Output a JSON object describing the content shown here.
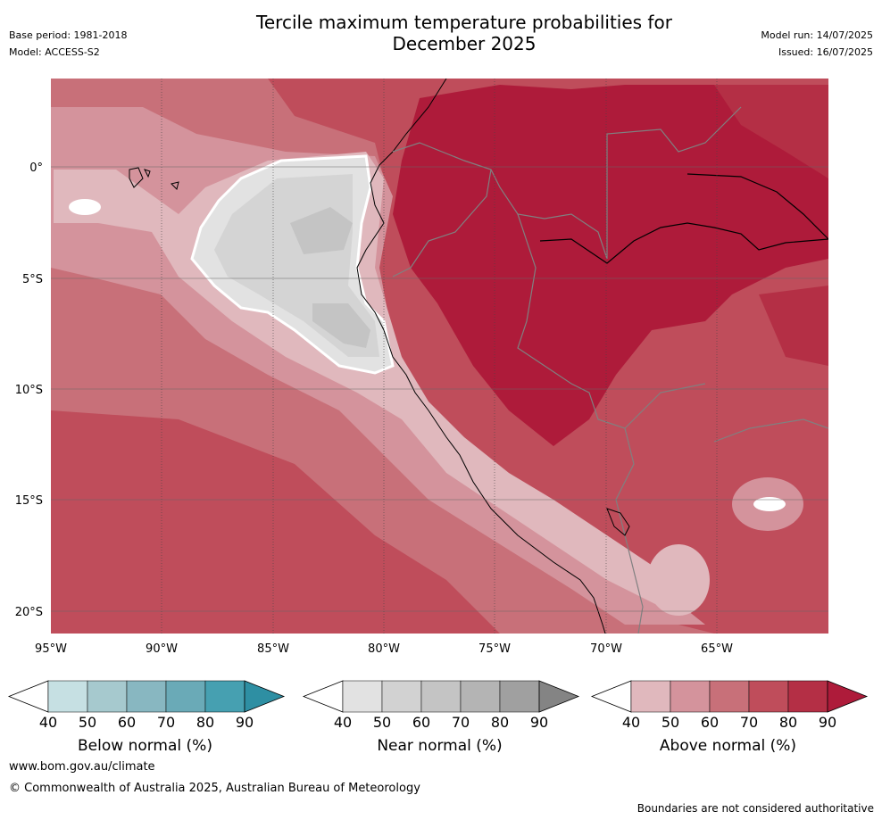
{
  "header": {
    "title_line1": "Tercile maximum temperature probabilities for",
    "title_line2": "December 2025",
    "base_period": "Base period: 1981-2018",
    "model": "Model: ACCESS-S2",
    "model_run": "Model run: 14/07/2025",
    "issued": "Issued: 16/07/2025"
  },
  "map": {
    "x_ticks": [
      "95°W",
      "90°W",
      "85°W",
      "80°W",
      "75°W",
      "70°W",
      "65°W"
    ],
    "y_ticks": [
      "0°",
      "5°S",
      "10°S",
      "15°S",
      "20°S"
    ],
    "colors": {
      "above_40_50": "#e0b8bd",
      "above_50_60": "#d4939c",
      "above_60_70": "#c87079",
      "above_70_80": "#bf4d5b",
      "above_80_90": "#b42f45",
      "above_90": "#ae1b3a",
      "near_40_50": "#e2e2e2",
      "near_50_60": "#d4d4d4",
      "near_60_70": "#c4c4c4"
    }
  },
  "legends": [
    {
      "label": "Below normal (%)",
      "ticks": [
        "40",
        "50",
        "60",
        "70",
        "80",
        "90"
      ],
      "colors": [
        "#ffffff",
        "#c6e0e3",
        "#a6c9ce",
        "#88b7c1",
        "#6aaab7",
        "#46a0b1",
        "#2e8fa3"
      ]
    },
    {
      "label": "Near normal (%)",
      "ticks": [
        "40",
        "50",
        "60",
        "70",
        "80",
        "90"
      ],
      "colors": [
        "#ffffff",
        "#e2e2e2",
        "#d2d2d2",
        "#c4c4c4",
        "#b4b4b4",
        "#a0a0a0",
        "#848484"
      ]
    },
    {
      "label": "Above normal (%)",
      "ticks": [
        "40",
        "50",
        "60",
        "70",
        "80",
        "90"
      ],
      "colors": [
        "#ffffff",
        "#e0b8bd",
        "#d4939c",
        "#c87079",
        "#bf4d5b",
        "#b42f45",
        "#ae1b3a"
      ]
    }
  ],
  "footer": {
    "website": "www.bom.gov.au/climate",
    "copyright": "© Commonwealth of Australia 2025, Australian Bureau of Meteorology",
    "disclaimer": "Boundaries are not considered authoritative"
  }
}
